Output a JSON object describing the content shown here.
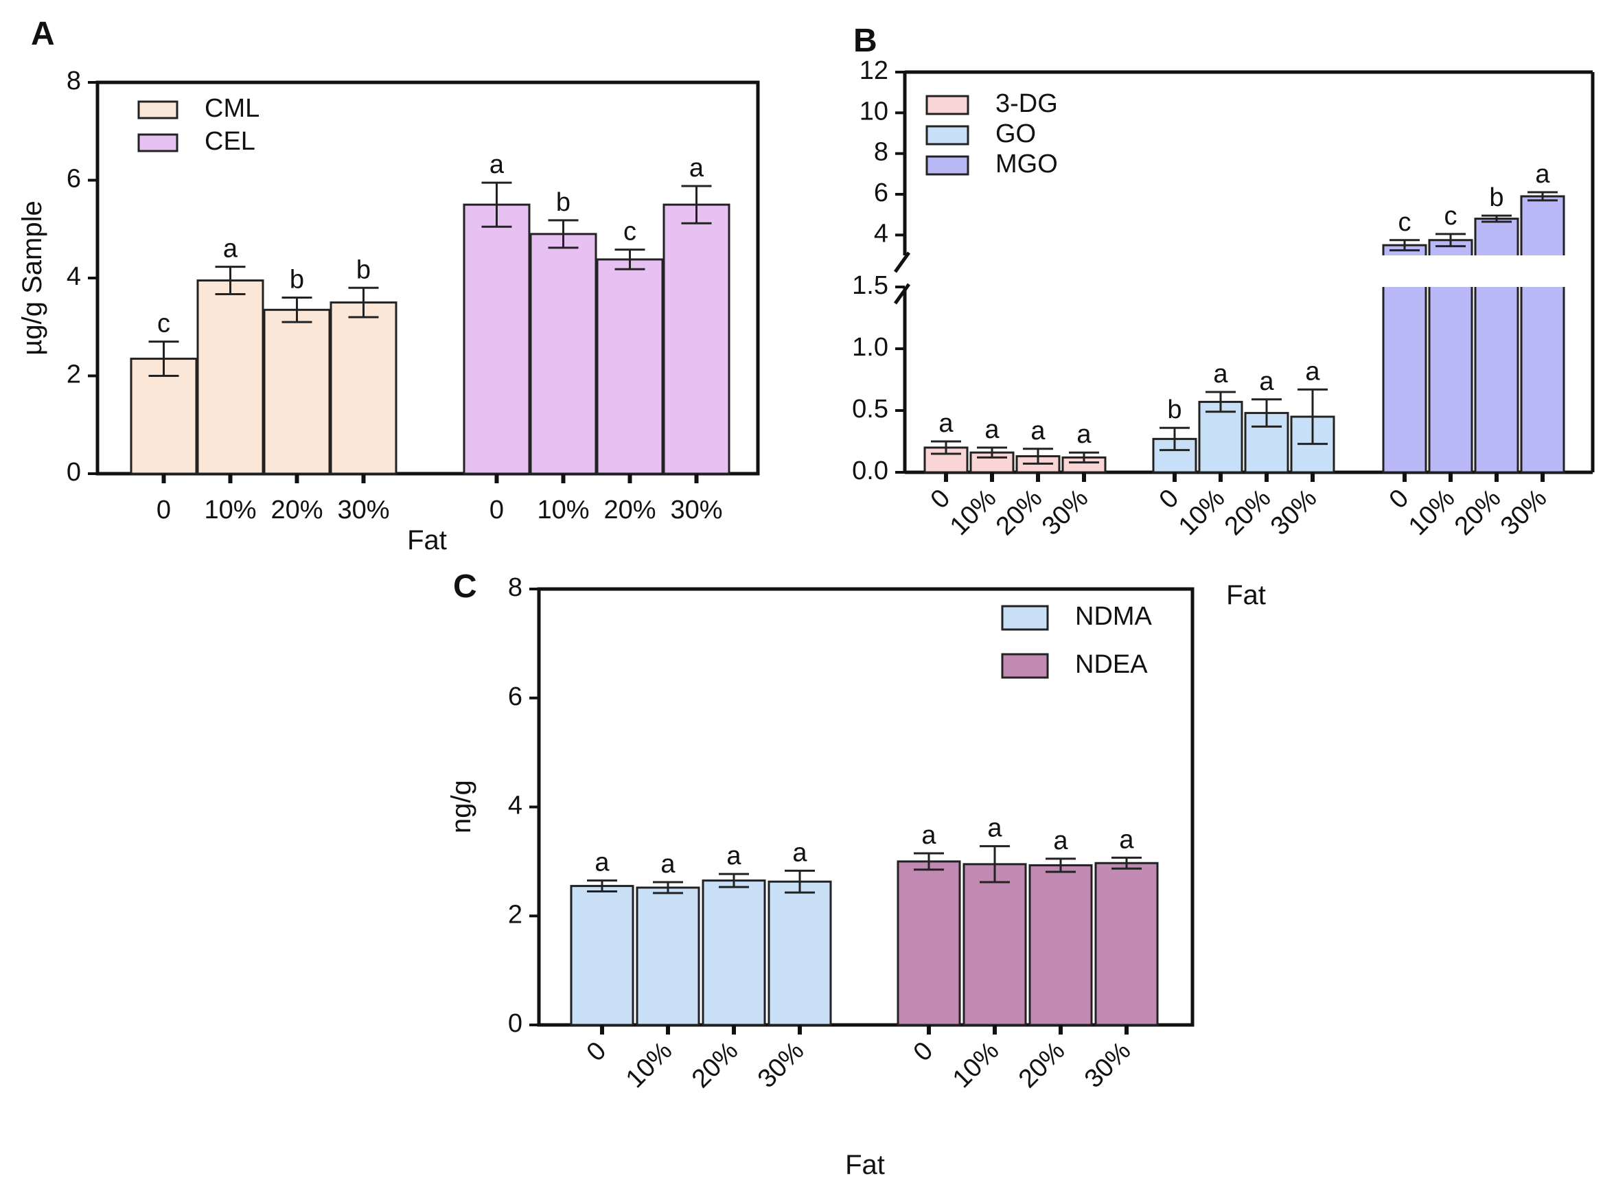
{
  "figure": {
    "panels": [
      {
        "letter": "A",
        "type": "bar",
        "ylabel": "µg/g Sample",
        "xlabel": "Fat",
        "ylim": [
          0,
          8
        ],
        "yticks": [
          "0",
          "2",
          "4",
          "6",
          "8"
        ],
        "groups": [
          {
            "series": "CML",
            "color": "#fbe7d7",
            "categories": [
              "0",
              "10%",
              "20%",
              "30%"
            ],
            "values": [
              2.35,
              3.95,
              3.35,
              3.5
            ],
            "errors": [
              0.35,
              0.28,
              0.25,
              0.3
            ],
            "letters": [
              "c",
              "a",
              "b",
              "b"
            ]
          },
          {
            "series": "CEL",
            "color": "#e7c1f2",
            "categories": [
              "0",
              "10%",
              "20%",
              "30%"
            ],
            "values": [
              5.5,
              4.9,
              4.38,
              5.5
            ],
            "errors": [
              0.45,
              0.28,
              0.2,
              0.38
            ],
            "letters": [
              "a",
              "b",
              "c",
              "a"
            ]
          }
        ],
        "legend": [
          {
            "label": "CML",
            "color": "#fbe7d7"
          },
          {
            "label": "CEL",
            "color": "#e7c1f2"
          }
        ]
      },
      {
        "letter": "B",
        "type": "bar",
        "xlabel": "Fat",
        "yaxis_segments": [
          {
            "range": [
              0,
              1.5
            ],
            "ticks": [
              "0.0",
              "0.5",
              "1.0",
              "1.5"
            ]
          },
          {
            "range": [
              3,
              12
            ],
            "ticks": [
              "4",
              "6",
              "8",
              "10",
              "12"
            ]
          }
        ],
        "groups": [
          {
            "series": "3-DG",
            "color": "#fad5d5",
            "categories": [
              "0",
              "10%",
              "20%",
              "30%"
            ],
            "values": [
              0.2,
              0.16,
              0.13,
              0.12
            ],
            "errors": [
              0.05,
              0.04,
              0.06,
              0.04
            ],
            "letters": [
              "a",
              "a",
              "a",
              "a"
            ]
          },
          {
            "series": "GO",
            "color": "#c8e0f7",
            "categories": [
              "0",
              "10%",
              "20%",
              "30%"
            ],
            "values": [
              0.27,
              0.57,
              0.48,
              0.45
            ],
            "errors": [
              0.09,
              0.08,
              0.11,
              0.22
            ],
            "letters": [
              "b",
              "a",
              "a",
              "a"
            ]
          },
          {
            "series": "MGO",
            "color": "#b9b9f7",
            "categories": [
              "0",
              "10%",
              "20%",
              "30%"
            ],
            "values": [
              3.5,
              3.75,
              4.8,
              5.9
            ],
            "errors": [
              0.25,
              0.3,
              0.15,
              0.2
            ],
            "letters": [
              "c",
              "c",
              "b",
              "a"
            ]
          }
        ],
        "legend": [
          {
            "label": "3-DG",
            "color": "#fad5d5"
          },
          {
            "label": "GO",
            "color": "#c8e0f7"
          },
          {
            "label": "MGO",
            "color": "#b9b9f7"
          }
        ]
      },
      {
        "letter": "C",
        "type": "bar",
        "ylabel": "ng/g",
        "xlabel": "Fat",
        "ylim": [
          0,
          8
        ],
        "yticks": [
          "0",
          "2",
          "4",
          "6",
          "8"
        ],
        "groups": [
          {
            "series": "NDMA",
            "color": "#c8dff5",
            "categories": [
              "0",
              "10%",
              "20%",
              "30%"
            ],
            "values": [
              2.55,
              2.52,
              2.65,
              2.63
            ],
            "errors": [
              0.1,
              0.1,
              0.12,
              0.2
            ],
            "letters": [
              "a",
              "a",
              "a",
              "a"
            ]
          },
          {
            "series": "NDEA",
            "color": "#c08ab3",
            "categories": [
              "0",
              "10%",
              "20%",
              "30%"
            ],
            "values": [
              3.0,
              2.95,
              2.93,
              2.97
            ],
            "errors": [
              0.15,
              0.33,
              0.12,
              0.1
            ],
            "letters": [
              "a",
              "a",
              "a",
              "a"
            ]
          }
        ],
        "legend": [
          {
            "label": "NDMA",
            "color": "#c8dff5"
          },
          {
            "label": "NDEA",
            "color": "#c08ab3"
          }
        ]
      }
    ]
  },
  "chart_data": [
    {
      "type": "bar",
      "panel": "A",
      "ylabel": "µg/g Sample",
      "xlabel": "Fat",
      "ylim": [
        0,
        8
      ],
      "categories": [
        "0",
        "10%",
        "20%",
        "30%"
      ],
      "series": [
        {
          "name": "CML",
          "values": [
            2.35,
            3.95,
            3.35,
            3.5
          ],
          "errors": [
            0.35,
            0.28,
            0.25,
            0.3
          ],
          "letters": [
            "c",
            "a",
            "b",
            "b"
          ]
        },
        {
          "name": "CEL",
          "values": [
            5.5,
            4.9,
            4.38,
            5.5
          ],
          "errors": [
            0.45,
            0.28,
            0.2,
            0.38
          ],
          "letters": [
            "a",
            "b",
            "c",
            "a"
          ]
        }
      ]
    },
    {
      "type": "bar",
      "panel": "B",
      "xlabel": "Fat",
      "ylim": [
        0,
        12
      ],
      "axis_break": [
        1.5,
        3
      ],
      "categories": [
        "0",
        "10%",
        "20%",
        "30%"
      ],
      "series": [
        {
          "name": "3-DG",
          "values": [
            0.2,
            0.16,
            0.13,
            0.12
          ],
          "errors": [
            0.05,
            0.04,
            0.06,
            0.04
          ],
          "letters": [
            "a",
            "a",
            "a",
            "a"
          ]
        },
        {
          "name": "GO",
          "values": [
            0.27,
            0.57,
            0.48,
            0.45
          ],
          "errors": [
            0.09,
            0.08,
            0.11,
            0.22
          ],
          "letters": [
            "b",
            "a",
            "a",
            "a"
          ]
        },
        {
          "name": "MGO",
          "values": [
            3.5,
            3.75,
            4.8,
            5.9
          ],
          "errors": [
            0.25,
            0.3,
            0.15,
            0.2
          ],
          "letters": [
            "c",
            "c",
            "b",
            "a"
          ]
        }
      ]
    },
    {
      "type": "bar",
      "panel": "C",
      "ylabel": "ng/g",
      "xlabel": "Fat",
      "ylim": [
        0,
        8
      ],
      "categories": [
        "0",
        "10%",
        "20%",
        "30%"
      ],
      "series": [
        {
          "name": "NDMA",
          "values": [
            2.55,
            2.52,
            2.65,
            2.63
          ],
          "errors": [
            0.1,
            0.1,
            0.12,
            0.2
          ],
          "letters": [
            "a",
            "a",
            "a",
            "a"
          ]
        },
        {
          "name": "NDEA",
          "values": [
            3.0,
            2.95,
            2.93,
            2.97
          ],
          "errors": [
            0.15,
            0.33,
            0.12,
            0.1
          ],
          "letters": [
            "a",
            "a",
            "a",
            "a"
          ]
        }
      ]
    }
  ]
}
